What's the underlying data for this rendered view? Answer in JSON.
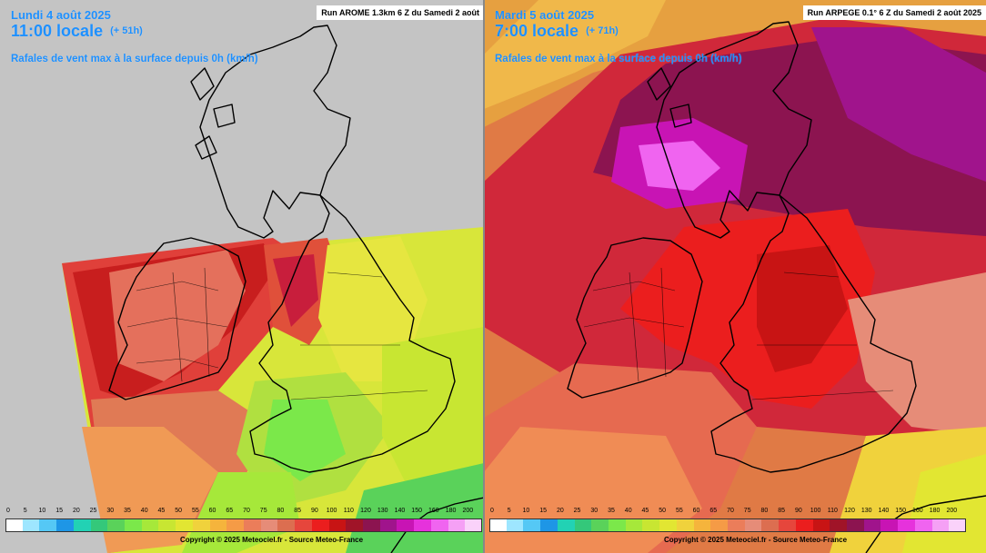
{
  "left_panel": {
    "date": "Lundi 4 août 2025",
    "time": "11:00 locale",
    "lead": "(+ 51h)",
    "parameter": "Rafales de vent max à la surface depuis 0h (km/h)",
    "run": "Run AROME 1.3km 6 Z du Samedi 2 août",
    "copyright": "Copyright © 2025 Meteociel.fr - Source Meteo-France"
  },
  "right_panel": {
    "date": "Mardi 5 août 2025",
    "time": "7:00 locale",
    "lead": "(+ 71h)",
    "parameter": "Rafales de vent max à la surface depuis 0h (km/h)",
    "run": "Run ARPEGE 0.1° 6 Z du Samedi 2 août 2025",
    "copyright": "Copyright © 2025 Meteociel.fr - Source Meteo-France"
  },
  "legend": {
    "ticks": [
      "0",
      "5",
      "10",
      "15",
      "20",
      "25",
      "30",
      "35",
      "40",
      "45",
      "50",
      "55",
      "60",
      "65",
      "70",
      "75",
      "80",
      "85",
      "90",
      "100",
      "110",
      "120",
      "130",
      "140",
      "150",
      "160",
      "180",
      "200"
    ],
    "colors": [
      "#ffffff",
      "#9ee6ff",
      "#55c8f5",
      "#1e96e6",
      "#22d2b4",
      "#34c87a",
      "#5ad25a",
      "#7be84a",
      "#a6e83a",
      "#c8e632",
      "#e2e632",
      "#f0d23c",
      "#f5b43c",
      "#f59b46",
      "#eb7d5a",
      "#e68c78",
      "#dc6e50",
      "#e6463c",
      "#eb1e1e",
      "#c81414",
      "#a01428",
      "#8c1450",
      "#a0148c",
      "#c814b4",
      "#e632dc",
      "#f064f0",
      "#f5a0f5",
      "#fad2fa"
    ]
  },
  "colors": {
    "header_text": "#1e90ff",
    "no_data_grey": "#c4c4c4"
  }
}
